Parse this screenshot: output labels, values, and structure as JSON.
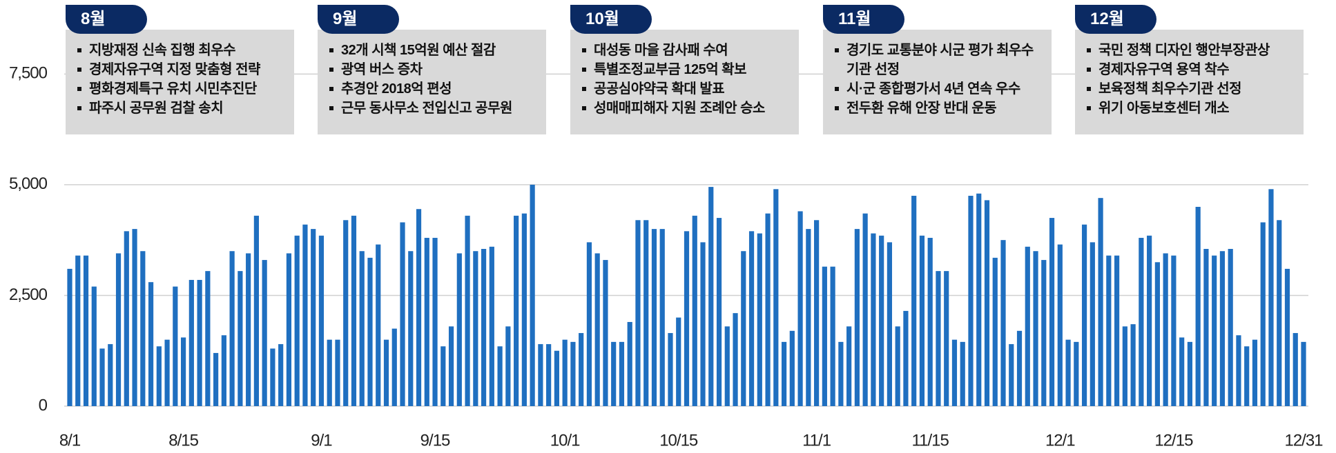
{
  "chart_data": {
    "type": "bar",
    "color": "#1f6fc0",
    "grid": true,
    "ylim": [
      0,
      9000
    ],
    "yticks": [
      0,
      {
        "value": 2500,
        "label": "2,500"
      },
      {
        "value": 5000,
        "label": "5,000"
      },
      {
        "value": 7500,
        "label": "7,500"
      }
    ],
    "categories": [
      "8/1",
      null,
      null,
      null,
      null,
      null,
      null,
      null,
      null,
      null,
      null,
      null,
      null,
      null,
      "8/15",
      null,
      null,
      null,
      null,
      null,
      null,
      null,
      null,
      null,
      null,
      null,
      null,
      null,
      null,
      null,
      null,
      "9/1",
      null,
      null,
      null,
      null,
      null,
      null,
      null,
      null,
      null,
      null,
      null,
      null,
      null,
      "9/15",
      null,
      null,
      null,
      null,
      null,
      null,
      null,
      null,
      null,
      null,
      null,
      null,
      null,
      null,
      null,
      "10/1",
      null,
      null,
      null,
      null,
      null,
      null,
      null,
      null,
      null,
      null,
      null,
      null,
      null,
      "10/15",
      null,
      null,
      null,
      null,
      null,
      null,
      null,
      null,
      null,
      null,
      null,
      null,
      null,
      null,
      null,
      null,
      "11/1",
      null,
      null,
      null,
      null,
      null,
      null,
      null,
      null,
      null,
      null,
      null,
      null,
      null,
      "11/15",
      null,
      null,
      null,
      null,
      null,
      null,
      null,
      null,
      null,
      null,
      null,
      null,
      null,
      null,
      null,
      "12/1",
      null,
      null,
      null,
      null,
      null,
      null,
      null,
      null,
      null,
      null,
      null,
      null,
      null,
      "12/15",
      null,
      null,
      null,
      null,
      null,
      null,
      null,
      null,
      null,
      null,
      null,
      null,
      null,
      null,
      null,
      "12/31"
    ],
    "values": [
      3100,
      3400,
      3400,
      2700,
      1300,
      1400,
      3450,
      3950,
      4000,
      3500,
      2800,
      1350,
      1500,
      2700,
      1550,
      2850,
      2850,
      3050,
      1200,
      1600,
      3500,
      3050,
      3450,
      4300,
      3300,
      1300,
      1400,
      3450,
      3850,
      4100,
      4000,
      3850,
      1500,
      1500,
      4200,
      4300,
      3500,
      3350,
      3650,
      1500,
      1750,
      4150,
      3500,
      4450,
      3800,
      3800,
      1350,
      1800,
      3450,
      4300,
      3500,
      3550,
      3600,
      1350,
      1800,
      4300,
      4350,
      5000,
      1400,
      1400,
      1250,
      1500,
      1450,
      1650,
      3700,
      3450,
      3300,
      1450,
      1450,
      1900,
      4200,
      4200,
      4000,
      4000,
      1650,
      2000,
      3950,
      4300,
      3700,
      4950,
      4250,
      1800,
      2100,
      3500,
      3950,
      3900,
      4350,
      4900,
      1450,
      1700,
      4400,
      4000,
      4200,
      3150,
      3150,
      1450,
      1800,
      4000,
      4350,
      3900,
      3850,
      3700,
      1800,
      2150,
      4750,
      3850,
      3800,
      3050,
      3050,
      1500,
      1450,
      4750,
      4800,
      4650,
      3350,
      3750,
      1400,
      1700,
      3600,
      3500,
      3300,
      4250,
      3650,
      1500,
      1450,
      4100,
      3700,
      4700,
      3400,
      3400,
      1800,
      1850,
      3800,
      3850,
      3250,
      3450,
      3400,
      1550,
      1450,
      4500,
      3550,
      3400,
      3500,
      3550,
      1600,
      1350,
      1500,
      4150,
      4900,
      4200,
      3100,
      1650,
      1450
    ],
    "annotations": [
      {
        "label": "8월",
        "items": [
          "지방재정 신속 집행 최우수",
          "경제자유구역 지정 맞춤형 전략",
          "평화경제특구 유치 시민추진단",
          "파주시 공무원 검찰 송치"
        ]
      },
      {
        "label": "9월",
        "items": [
          "32개 시책 15억원 예산 절감",
          "광역 버스 증차",
          "추경안 2018억 편성",
          "근무 동사무소 전입신고 공무원"
        ]
      },
      {
        "label": "10월",
        "items": [
          "대성동 마을 감사패 수여",
          "특별조정교부금 125억 확보",
          "공공심야약국 확대 발표",
          "성매매피해자 지원 조례안 승소"
        ]
      },
      {
        "label": "11월",
        "items": [
          "경기도 교통분야 시군 평가 최우수 기관 선정",
          "시·군 종합평가서 4년 연속 우수",
          "전두환 유해 안장 반대 운동"
        ]
      },
      {
        "label": "12월",
        "items": [
          "국민 정책 디자인 행안부장관상",
          "경제자유구역 용역 착수",
          "보육정책 최우수기관 선정",
          "위기 아동보호센터 개소"
        ]
      }
    ]
  }
}
